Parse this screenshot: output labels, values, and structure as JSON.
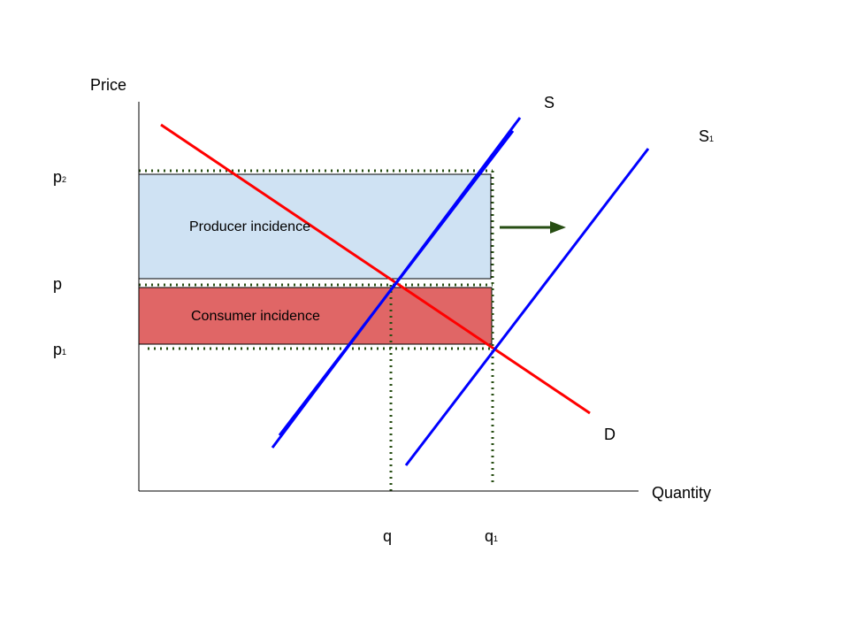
{
  "axes": {
    "y_label": "Price",
    "x_label": "Quantity"
  },
  "curves": {
    "supply": "S",
    "supply_shifted": {
      "base": "S",
      "sub": "1"
    },
    "demand": "D"
  },
  "prices": {
    "high": {
      "base": "p",
      "sub": "2"
    },
    "equilibrium": "p",
    "low": {
      "base": "p",
      "sub": "1"
    }
  },
  "quantities": {
    "equilibrium": "q",
    "new": {
      "base": "q",
      "sub": "1"
    }
  },
  "areas": {
    "producer": "Producer incidence",
    "consumer": "Consumer incidence"
  }
}
